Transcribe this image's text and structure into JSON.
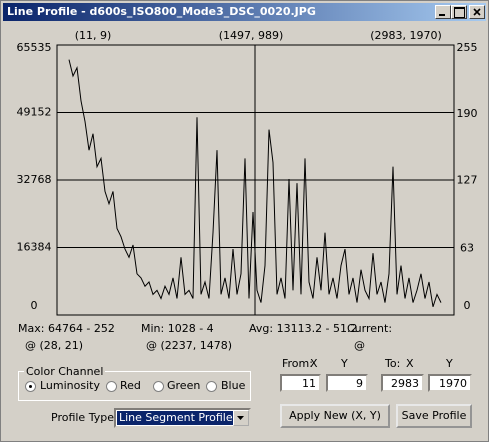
{
  "window": {
    "title": "Line Profile - d600s_ISO800_Mode3_DSC_0020.JPG"
  },
  "chart_data": {
    "type": "line",
    "top_labels": [
      "(11, 9)",
      "(1497, 989)",
      "(2983, 1970)"
    ],
    "values": [
      62000,
      58000,
      60000,
      52000,
      47000,
      40000,
      44000,
      36000,
      38000,
      30000,
      27000,
      30000,
      21000,
      19000,
      16000,
      14000,
      17000,
      10000,
      9000,
      7000,
      8000,
      5000,
      6000,
      4000,
      7000,
      5000,
      9000,
      4000,
      14000,
      5000,
      6000,
      4000,
      48000,
      5000,
      8000,
      4000,
      20000,
      40000,
      5000,
      9000,
      4000,
      16000,
      5000,
      10000,
      38000,
      4000,
      25000,
      6000,
      3000,
      12000,
      45000,
      37000,
      5000,
      9000,
      4000,
      33000,
      6000,
      32000,
      5000,
      38000,
      8000,
      4000,
      14000,
      6000,
      20000,
      5000,
      9000,
      4000,
      12000,
      16000,
      5000,
      9000,
      3000,
      11000,
      6000,
      4000,
      15000,
      5000,
      8000,
      3000,
      10000,
      36000,
      5000,
      12000,
      4000,
      9000,
      3000,
      6000,
      10000,
      4000,
      8000,
      2000,
      5000,
      3000
    ],
    "color": "#000000",
    "ylim": [
      0,
      65535
    ],
    "yticks": [
      0,
      16384,
      32768,
      49152,
      65535
    ],
    "y2lim": [
      0,
      255
    ],
    "y2ticks": [
      0,
      63,
      127,
      190,
      255
    ],
    "grid": true
  },
  "stats": {
    "max": "Max: 64764 - 252",
    "max_at": "@  (28, 21)",
    "min": "Min: 1028 - 4",
    "min_at": "@  (2237, 1478)",
    "avg": "Avg: 13113.2 - 51.2",
    "current": "Current:",
    "current_at": "@"
  },
  "color_channel": {
    "label": "Color Channel",
    "options": [
      "Luminosity",
      "Red",
      "Green",
      "Blue"
    ]
  },
  "coords": {
    "from": "From:",
    "to": "To:",
    "x_label": "X",
    "y_label": "Y",
    "from_x": "11",
    "from_y": "9",
    "to_x": "2983",
    "to_y": "1970"
  },
  "profile_type": {
    "label": "Profile Type:",
    "value": "Line Segment Profile"
  },
  "buttons": {
    "apply": "Apply New (X, Y)",
    "save": "Save Profile"
  }
}
